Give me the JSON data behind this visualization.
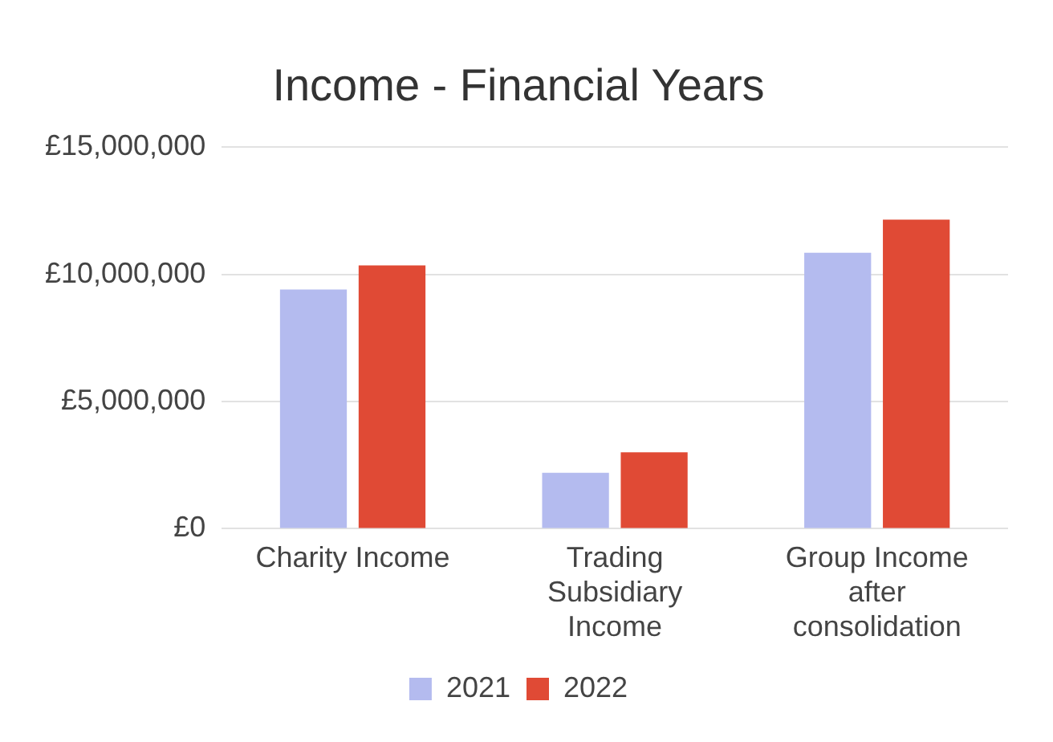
{
  "chart_data": {
    "type": "bar",
    "title": "Income - Financial Years",
    "categories": [
      "Charity Income",
      "Trading Subsidiary Income",
      "Group Income after consolidation"
    ],
    "series": [
      {
        "name": "2021",
        "color": "#b4bbef",
        "values": [
          9400000,
          2200000,
          10850000
        ]
      },
      {
        "name": "2022",
        "color": "#e04a35",
        "values": [
          10350000,
          3000000,
          12150000
        ]
      }
    ],
    "ylim": [
      0,
      15000000
    ],
    "yticks": [
      {
        "value": 0,
        "label": "£0"
      },
      {
        "value": 5000000,
        "label": "£5,000,000"
      },
      {
        "value": 10000000,
        "label": "£10,000,000"
      },
      {
        "value": 15000000,
        "label": "£15,000,000"
      }
    ],
    "grid": "y",
    "legend": "bottom"
  }
}
